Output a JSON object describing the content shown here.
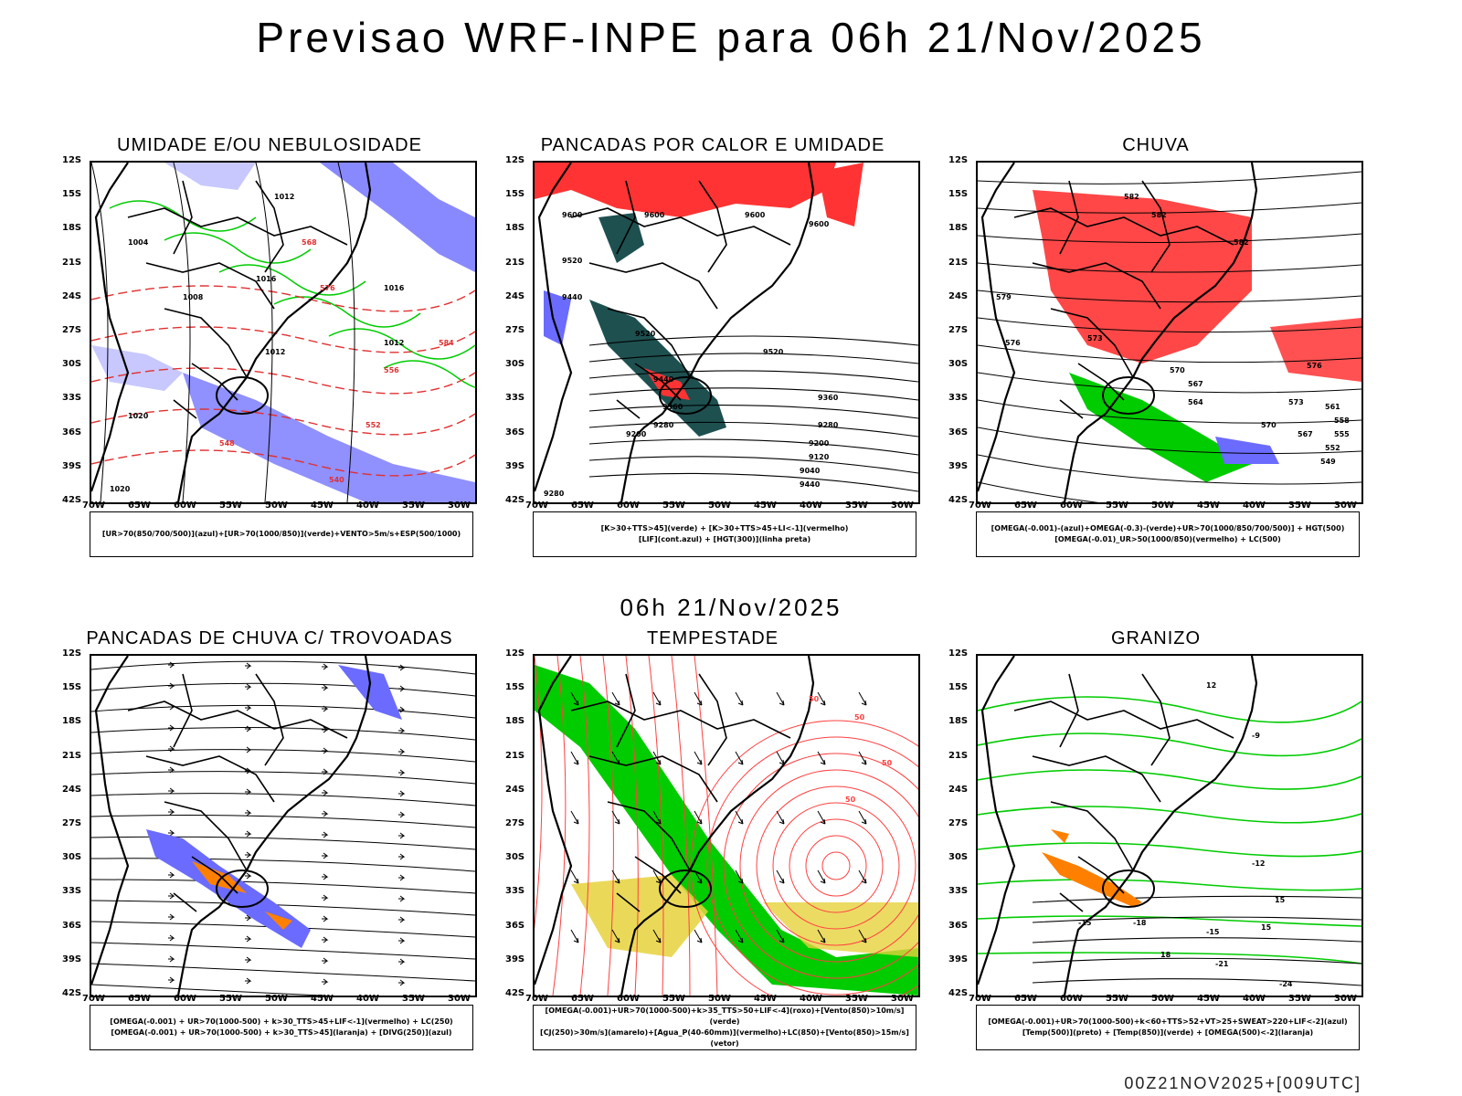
{
  "title": "Previsao WRF-INPE  para 06h 21/Nov/2025",
  "subtitle": "06h 21/Nov/2025",
  "footer": "00Z21NOV2025+[009UTC]",
  "axes": {
    "lat_labels": [
      "12S",
      "15S",
      "18S",
      "21S",
      "24S",
      "27S",
      "30S",
      "33S",
      "36S",
      "39S",
      "42S"
    ],
    "lon_labels": [
      "70W",
      "65W",
      "60W",
      "55W",
      "50W",
      "45W",
      "40W",
      "35W",
      "30W"
    ]
  },
  "colors": {
    "humid_blue": "#6b6bff",
    "light_blue": "#c8c8ff",
    "green": "#00cc00",
    "red": "#ff3333",
    "dark_teal": "#1e5050",
    "orange": "#ff8000",
    "yellow": "#e6d23c",
    "contour_red": "#ff4040"
  },
  "panels": [
    {
      "title": "UMIDADE E/OU NEBULOSIDADE",
      "legend": [
        "[UR>70(850/700/500)](azul)+[UR>70(1000/850)](verde)+VENTO>5m/s+ESP(500/1000)"
      ],
      "contour_labels": [
        "1012",
        "1016",
        "1016",
        "1012",
        "1008",
        "1020",
        "1020",
        "1012",
        "1004",
        "584",
        "556",
        "552",
        "548",
        "540",
        "576",
        "568"
      ]
    },
    {
      "title": "PANCADAS POR CALOR E UMIDADE",
      "legend": [
        "[K>30+TTS>45](verde)  +  [K>30+TTS>45+LI<-1](vermelho)",
        "[LIF](cont.azul)  +  [HGT(300)](linha preta)"
      ],
      "contour_labels": [
        "9600",
        "9600",
        "9600",
        "9520",
        "9440",
        "9520",
        "9600",
        "9520",
        "9440",
        "9360",
        "9280",
        "9200",
        "9120",
        "9040",
        "9440",
        "9360",
        "9280",
        "9200",
        "9280"
      ]
    },
    {
      "title": "CHUVA",
      "legend": [
        "[OMEGA(-0.001)-(azul)+OMEGA(-0.3)-(verde)+UR>70(1000/850/700/500)]  +  HGT(500)",
        "[OMEGA(-0.01)_UR>50(1000/850)(vermelho)  +  LC(500)"
      ],
      "contour_labels": [
        "582",
        "582",
        "582",
        "579",
        "576",
        "573",
        "570",
        "567",
        "564",
        "561",
        "558",
        "555",
        "552",
        "549",
        "576",
        "573",
        "570",
        "567"
      ]
    },
    {
      "title": "PANCADAS DE CHUVA C/ TROVOADAS",
      "legend": [
        "[OMEGA(-0.001)  +  UR>70(1000-500)  +  k>30_TTS>45+LIF<-1](vermelho)  +  LC(250)",
        "[OMEGA(-0.001)  +  UR>70(1000-500)  +  k>30_TTS>45](laranja)  +  [DIVG(250)](azul)"
      ]
    },
    {
      "title": "TEMPESTADE",
      "legend": [
        "[OMEGA(-0.001)+UR>70(1000-500)+k>35_TTS>50+LIF<-4](roxo)+[Vento(850)>10m/s](verde)",
        "[CJ(250)>30m/s](amarelo)+[Agua_P(40-60mm)](vermelho)+LC(850)+[Vento(850)>15m/s](vetor)"
      ],
      "contour_labels": [
        "50",
        "50",
        "50",
        "50"
      ]
    },
    {
      "title": "GRANIZO",
      "legend": [
        "[OMEGA(-0.001)+UR>70(1000-500)+k<60+TTS>52+VT>25+SWEAT>220+LIF<-2](azul)",
        "[Temp(500)](preto)  +  [Temp(850)](verde)  +  [OMEGA(500)<-2](laranja)"
      ],
      "contour_labels": [
        "-12",
        "-15",
        "-18",
        "-15",
        "-21",
        "-24",
        "-9",
        "12",
        "15",
        "15",
        "18"
      ]
    }
  ]
}
